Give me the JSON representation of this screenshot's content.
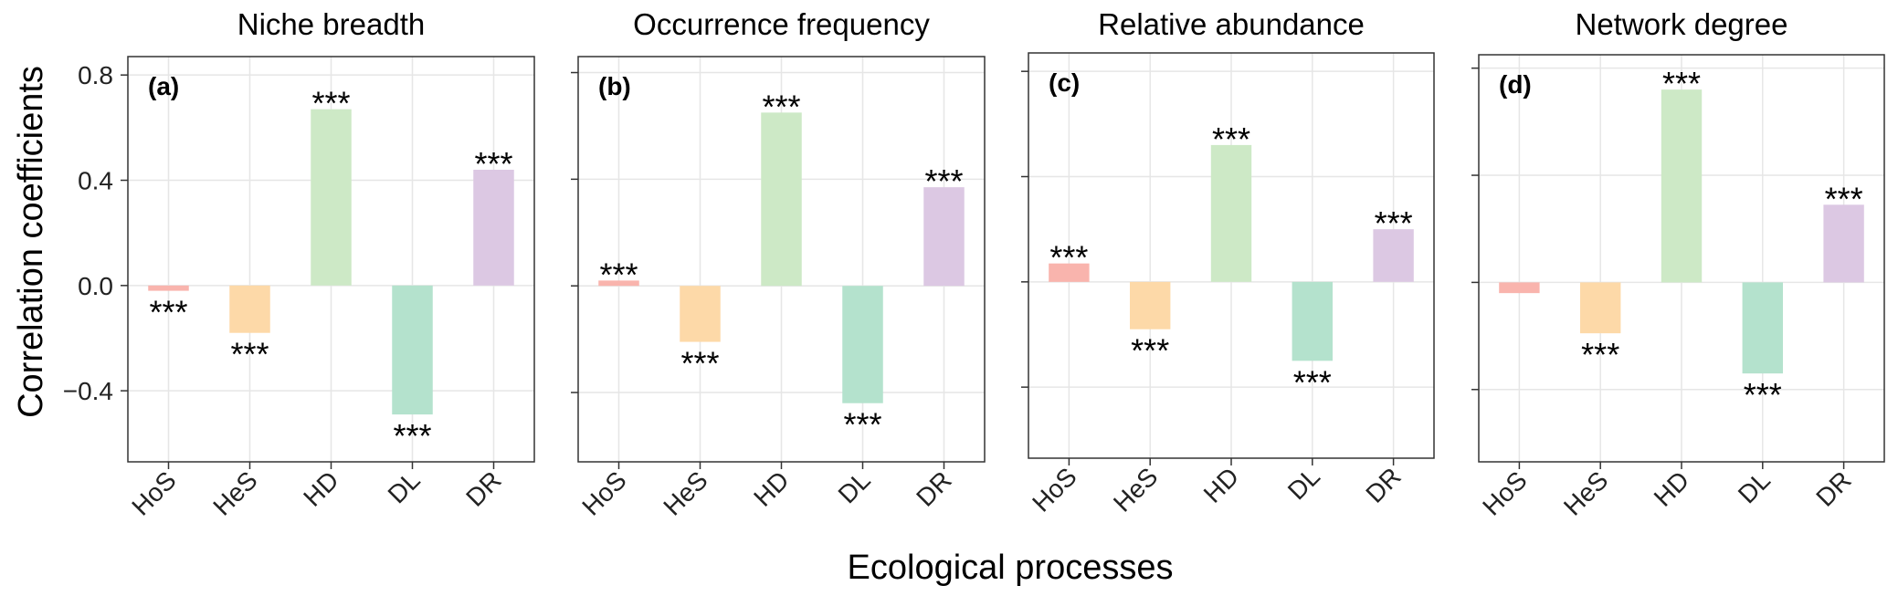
{
  "chart_data": {
    "type": "bar",
    "xlabel": "Ecological processes",
    "ylabel": "Correlation coefficients",
    "categories": [
      "HoS",
      "HeS",
      "HD",
      "DL",
      "DR"
    ],
    "colors": [
      "#f9b4ad",
      "#fdd9a8",
      "#cde9c6",
      "#b4e2cd",
      "#dcc8e3"
    ],
    "y_ticks": [
      -0.4,
      0.0,
      0.4,
      0.8
    ],
    "y_tick_labels": [
      "−0.4",
      "0.0",
      "0.4",
      "0.8"
    ],
    "grid": true,
    "panels": [
      {
        "letter": "(a)",
        "title": "Niche breadth",
        "ylim": [
          -0.67,
          0.87
        ],
        "values": [
          -0.02,
          -0.18,
          0.67,
          -0.49,
          0.44
        ],
        "significance": [
          "***",
          "***",
          "***",
          "***",
          "***"
        ]
      },
      {
        "letter": "(b)",
        "title": "Occurrence frequency",
        "ylim": [
          -0.66,
          0.86
        ],
        "values": [
          0.02,
          -0.21,
          0.65,
          -0.44,
          0.37
        ],
        "significance": [
          "***",
          "***",
          "***",
          "***",
          "***"
        ]
      },
      {
        "letter": "(c)",
        "title": "Relative abundance",
        "ylim": [
          -0.67,
          0.87
        ],
        "values": [
          0.07,
          -0.18,
          0.52,
          -0.3,
          0.2
        ],
        "significance": [
          "***",
          "***",
          "***",
          "***",
          "***"
        ]
      },
      {
        "letter": "(d)",
        "title": "Network degree",
        "ylim": [
          -0.67,
          0.85
        ],
        "values": [
          -0.04,
          -0.19,
          0.72,
          -0.34,
          0.29
        ],
        "significance": [
          "",
          "***",
          "***",
          "***",
          "***"
        ]
      }
    ]
  }
}
